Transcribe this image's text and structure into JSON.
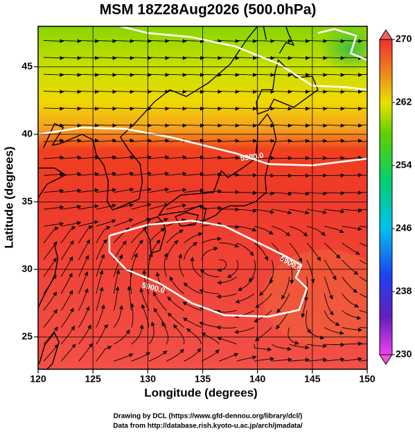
{
  "map": {
    "title": "MSM 18Z28Aug2026 (500.0hPa)",
    "xlabel": "Longitude (degrees)",
    "ylabel": "Latitude  (degrees)",
    "xlim": [
      120,
      150
    ],
    "ylim": [
      22.6,
      48
    ],
    "xticks": [
      120,
      125,
      130,
      135,
      140,
      145,
      150
    ],
    "yticks": [
      25,
      30,
      35,
      40,
      45
    ],
    "colorbar": {
      "lim": [
        230,
        270
      ],
      "ticks": [
        230,
        238,
        246,
        254,
        262,
        270
      ]
    },
    "contour_labels": [
      "5900.0",
      "5900.0",
      "5900.0"
    ]
  },
  "footer": [
    "Drawing by DCL (https://www.gfd-dennou.org/library/dcl/)",
    "Data from http://database.rish.kyoto-u.ac.jp/arch/jmadata/"
  ]
}
